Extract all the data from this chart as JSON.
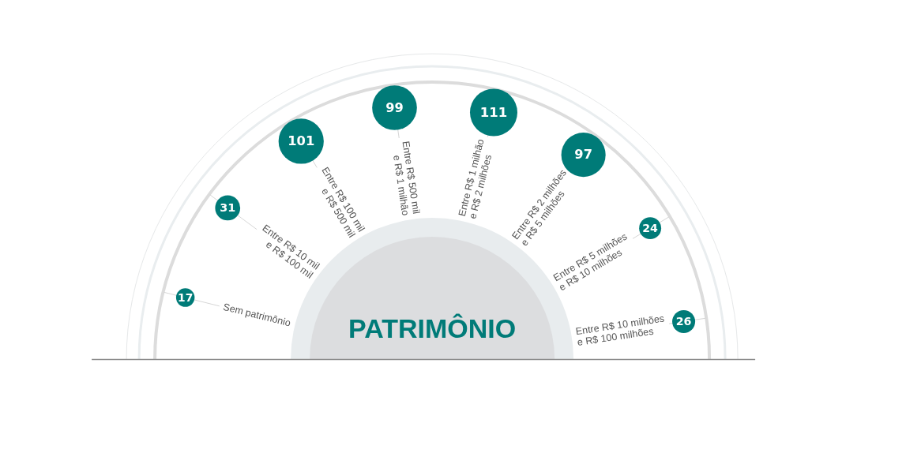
{
  "chart_data": {
    "type": "other",
    "title": "PATRIMÔNIO",
    "categories": [
      "Sem patrimônio",
      "Entre R$ 10 mil\ne R$ 100 mil",
      "Entre R$ 100 mil\ne R$ 500 mil",
      "Entre R$ 500 mil\ne R$ 1 milhão",
      "Entre R$ 1 milhão\ne R$ 2 milhões",
      "Entre R$ 2 milhões\ne R$ 5 milhões",
      "Entre R$ 5 milhões\ne R$ 10 milhões",
      "Entre R$ 10 milhões\ne R$ 100 milhões"
    ],
    "values": [
      17,
      31,
      101,
      99,
      111,
      97,
      24,
      26
    ],
    "color": "#007b78",
    "data_labels": true
  }
}
